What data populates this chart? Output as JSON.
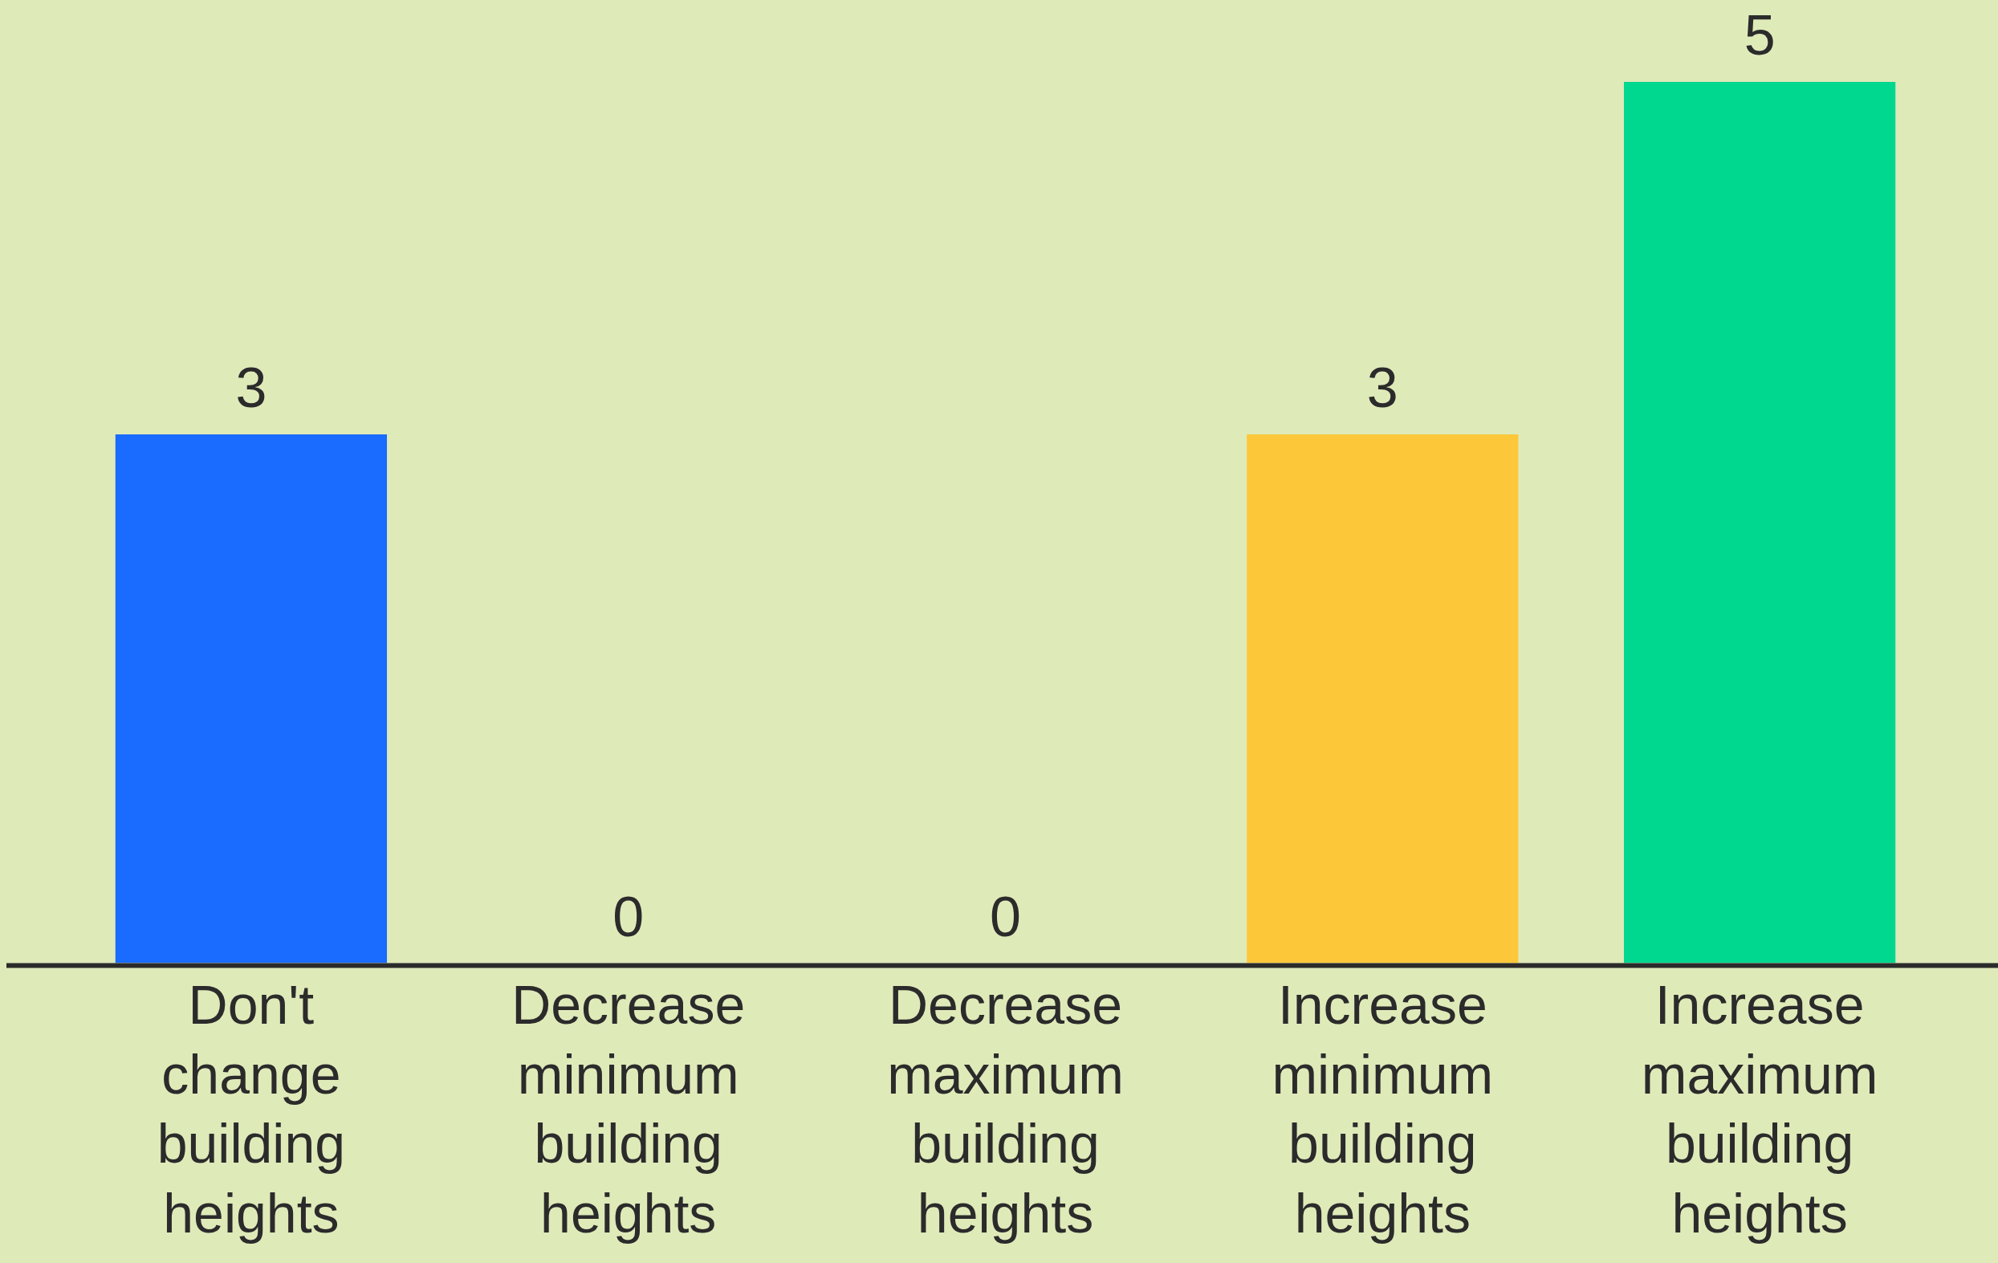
{
  "chart_data": {
    "type": "bar",
    "categories": [
      "Don't change building heights",
      "Decrease minimum building heights",
      "Decrease maximum building heights",
      "Increase minimum building heights",
      "Increase maximum building heights"
    ],
    "values": [
      3,
      0,
      0,
      3,
      5
    ],
    "colors": [
      "#1a6bff",
      null,
      null,
      "#fdc73a",
      "#00d78f"
    ],
    "data_labels": true,
    "grid": false,
    "legend": false
  }
}
